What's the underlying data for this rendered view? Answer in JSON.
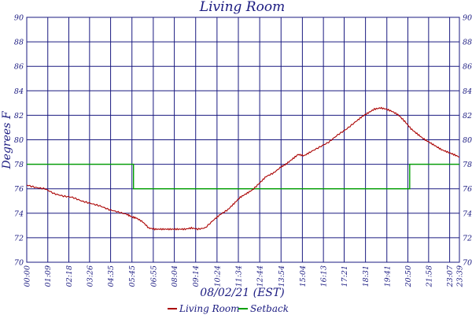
{
  "chart_data": {
    "type": "line",
    "title": "Living Room",
    "xlabel": "08/02/21 (EST)",
    "ylabel": "Degrees F",
    "ylim": [
      70,
      90
    ],
    "yticks": [
      70,
      72,
      74,
      76,
      78,
      80,
      82,
      84,
      86,
      88,
      90
    ],
    "xticks": [
      "00:00",
      "01:09",
      "02:18",
      "03:26",
      "04:35",
      "05:45",
      "06:55",
      "08:04",
      "09:14",
      "10:24",
      "11:34",
      "12:44",
      "13:54",
      "15:04",
      "16:13",
      "17:21",
      "18:31",
      "19:41",
      "20:50",
      "21:58",
      "23:07",
      "23:39"
    ],
    "grid": true,
    "legend_position": "bottom",
    "colors": {
      "grid": "#1a1a80",
      "living_room": "#aa0000",
      "setback": "#00a000",
      "text": "#1a1a80"
    },
    "series": [
      {
        "name": "Living Room",
        "x": [
          "00:00",
          "00:30",
          "01:00",
          "01:30",
          "02:00",
          "02:30",
          "03:00",
          "03:30",
          "04:00",
          "04:30",
          "05:00",
          "05:30",
          "05:45",
          "06:00",
          "06:20",
          "06:40",
          "07:00",
          "07:20",
          "07:40",
          "08:00",
          "08:20",
          "08:40",
          "09:00",
          "09:20",
          "09:45",
          "10:15",
          "10:35",
          "11:00",
          "11:20",
          "11:40",
          "12:00",
          "12:20",
          "12:45",
          "13:05",
          "13:30",
          "13:55",
          "14:10",
          "14:30",
          "14:50",
          "15:10",
          "15:30",
          "16:00",
          "16:30",
          "17:00",
          "17:30",
          "18:00",
          "18:20",
          "18:40",
          "19:00",
          "19:20",
          "19:40",
          "20:00",
          "20:20",
          "20:40",
          "21:00",
          "21:20",
          "21:40",
          "22:00",
          "22:20",
          "22:40",
          "23:00",
          "23:20",
          "23:39"
        ],
        "values": [
          76.3,
          76.1,
          76.0,
          75.6,
          75.4,
          75.3,
          75.0,
          74.8,
          74.6,
          74.3,
          74.1,
          73.9,
          73.7,
          73.6,
          73.3,
          72.8,
          72.7,
          72.7,
          72.7,
          72.7,
          72.7,
          72.7,
          72.8,
          72.7,
          72.8,
          73.5,
          73.9,
          74.3,
          74.8,
          75.3,
          75.6,
          75.9,
          76.5,
          77.0,
          77.3,
          77.8,
          78.0,
          78.4,
          78.8,
          78.7,
          79.0,
          79.4,
          79.8,
          80.4,
          80.9,
          81.5,
          81.9,
          82.2,
          82.5,
          82.6,
          82.5,
          82.3,
          82.0,
          81.5,
          80.9,
          80.5,
          80.1,
          79.8,
          79.5,
          79.2,
          79.0,
          78.8,
          78.6
        ]
      },
      {
        "name": "Setback",
        "x": [
          "00:00",
          "05:50",
          "05:50",
          "20:56",
          "20:56",
          "23:39"
        ],
        "values": [
          78,
          78,
          76,
          76,
          78,
          78
        ]
      }
    ]
  }
}
